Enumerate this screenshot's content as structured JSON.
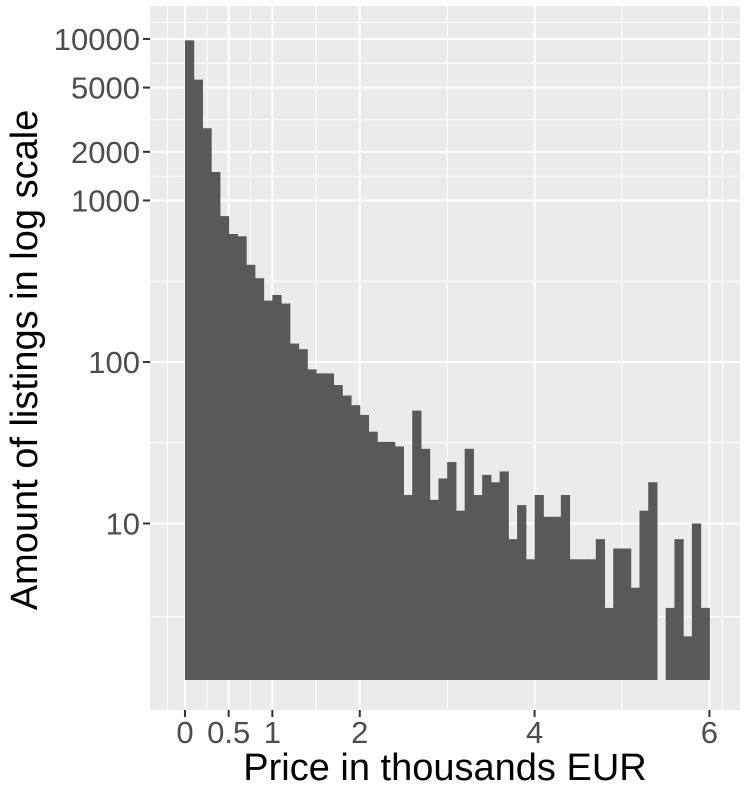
{
  "chart_data": {
    "type": "bar",
    "title": "",
    "xlabel": "Price in thousands EUR",
    "ylabel": "Amount of listings in log scale",
    "y_scale": "log10",
    "xlim": [
      -0.4,
      6.35
    ],
    "ylim": [
      0.7,
      16000
    ],
    "x_ticks": [
      {
        "value": 0,
        "label": "0"
      },
      {
        "value": 0.5,
        "label": "0.5"
      },
      {
        "value": 1,
        "label": "1"
      },
      {
        "value": 2,
        "label": "2"
      },
      {
        "value": 4,
        "label": "4"
      },
      {
        "value": 6,
        "label": "6"
      }
    ],
    "y_ticks": [
      {
        "value": 10,
        "label": "10"
      },
      {
        "value": 100,
        "label": "100"
      },
      {
        "value": 1000,
        "label": "1000"
      },
      {
        "value": 2000,
        "label": "2000"
      },
      {
        "value": 5000,
        "label": "5000"
      },
      {
        "value": 10000,
        "label": "10000"
      }
    ],
    "bin_width": 0.1,
    "bins_start": [
      0.0,
      0.1,
      0.2,
      0.3,
      0.4,
      0.5,
      0.6,
      0.7,
      0.8,
      0.9,
      1.0,
      1.1,
      1.2,
      1.3,
      1.4,
      1.5,
      1.6,
      1.7,
      1.8,
      1.9,
      2.0,
      2.1,
      2.2,
      2.3,
      2.4,
      2.5,
      2.6,
      2.7,
      2.8,
      2.9,
      3.0,
      3.1,
      3.2,
      3.3,
      3.4,
      3.5,
      3.6,
      3.7,
      3.8,
      3.9,
      4.0,
      4.1,
      4.2,
      4.3,
      4.4,
      4.5,
      4.6,
      4.7,
      4.8,
      4.9,
      5.0,
      5.1,
      5.2,
      5.3,
      5.4,
      5.5,
      5.6,
      5.7,
      5.8,
      5.9
    ],
    "values": [
      9800,
      5600,
      2800,
      1500,
      800,
      620,
      600,
      400,
      330,
      240,
      260,
      230,
      130,
      120,
      90,
      85,
      85,
      72,
      62,
      54,
      47,
      37,
      32,
      32,
      30,
      15,
      50,
      29,
      14,
      19,
      24,
      12,
      29,
      15,
      20,
      18,
      21,
      8,
      13,
      6,
      15,
      11,
      11,
      15,
      6,
      6,
      6,
      8,
      3,
      7,
      7,
      4,
      12,
      18,
      0,
      3,
      8,
      2,
      10,
      3
    ],
    "colors": {
      "bar": "#595959",
      "panel_background": "#ebebeb",
      "gridline": "#ffffff",
      "tick_mark": "#333333"
    }
  }
}
